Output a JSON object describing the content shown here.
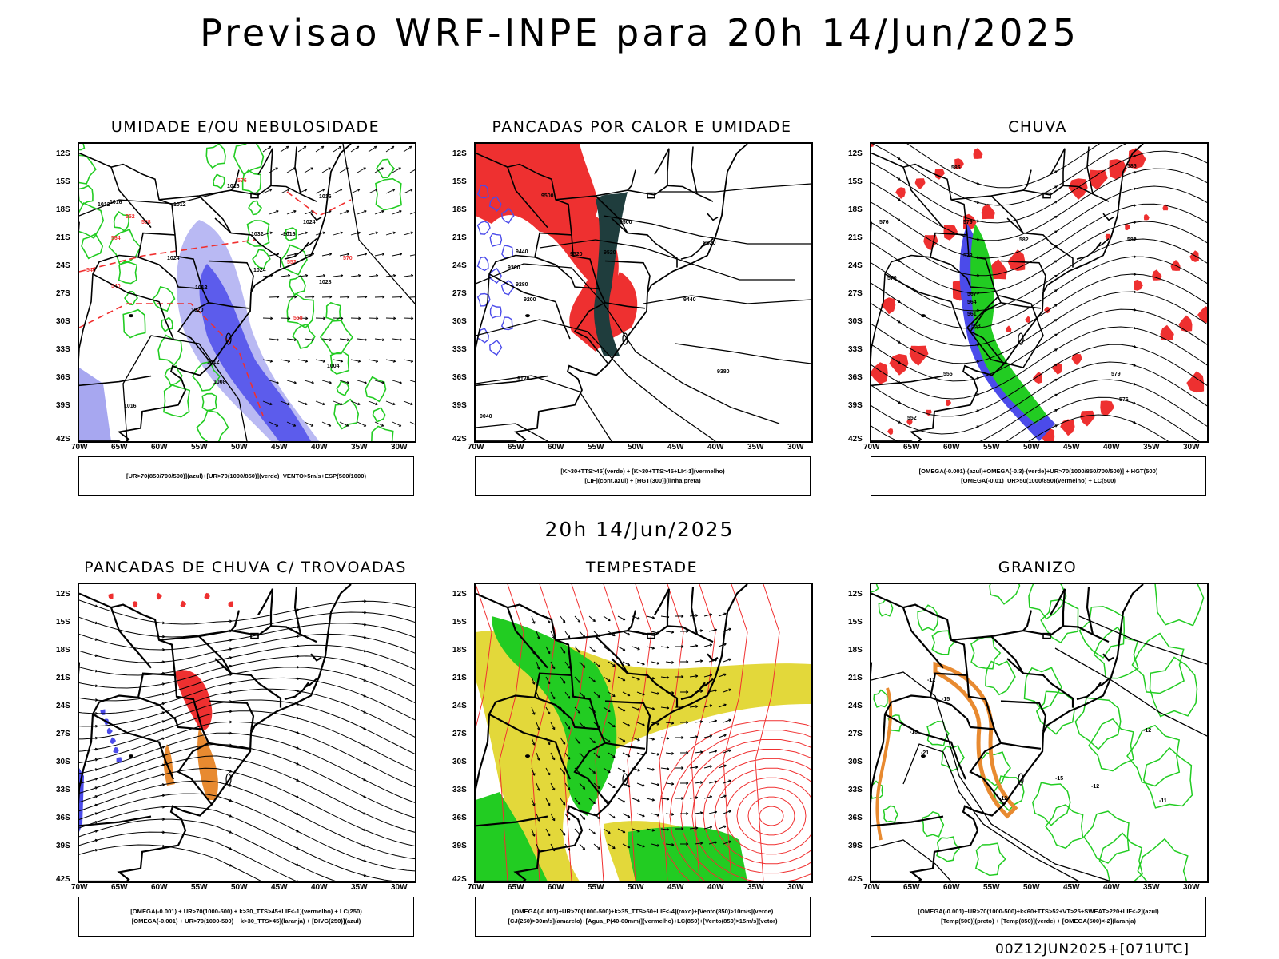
{
  "title": "Previsao WRF-INPE  para 20h 14/Jun/2025",
  "mid_date": "20h 14/Jun/2025",
  "run_stamp": "00Z12JUN2025+[071UTC]",
  "axes": {
    "lat": [
      "12S",
      "15S",
      "18S",
      "21S",
      "24S",
      "27S",
      "30S",
      "33S",
      "36S",
      "39S",
      "42S"
    ],
    "lon": [
      "70W",
      "65W",
      "60W",
      "55W",
      "50W",
      "45W",
      "40W",
      "35W",
      "30W"
    ]
  },
  "colors": {
    "blue": "#4b4bea",
    "light_blue": "#a7a7f0",
    "green": "#22cc22",
    "red": "#ee3030",
    "orange": "#e88a30",
    "yellow": "#e3d83a",
    "dark_teal": "#1f3d3d",
    "line_red": "#f03030"
  },
  "panels": [
    {
      "id": "umidade",
      "title": "UMIDADE E/OU NEBULOSIDADE",
      "legend": [
        "[UR>70(850/700/500)](azul)+[UR>70(1000/850)](verde)+VENTO>5m/s+ESP(500/1000)"
      ],
      "labels": [
        "1016",
        "1012",
        "1016",
        "1016",
        "1024",
        "1024",
        "1012",
        "1024",
        "1028",
        "1020",
        "1012",
        "1008",
        "1004",
        "1016",
        "1012",
        "1032",
        "1016",
        "570",
        "576",
        "564",
        "558",
        "552",
        "546",
        "540",
        "552",
        "558"
      ]
    },
    {
      "id": "pancadas-calor",
      "title": "PANCADAS POR CALOR E UMIDADE",
      "legend": [
        "[K>30+TTS>45](verde) + [K>30+TTS>45+LI<-1](vermelho)",
        "[LIF](cont.azul) + [HGT(300)](linha preta)"
      ],
      "labels": [
        "9520",
        "9500",
        "9440",
        "9360",
        "9280",
        "9200",
        "9120",
        "9040",
        "9520",
        "9500",
        "9520",
        "9440",
        "9380"
      ]
    },
    {
      "id": "chuva",
      "title": "CHUVA",
      "legend": [
        "[OMEGA(-0.001)-(azul)+OMEGA(-0.3)-(verde)+UR>70(1000/850/700/500)] + HGT(500)",
        "[OMEGA(-0.01)_UR>50(1000/850)(vermelho) + LC(500)"
      ],
      "labels": [
        "585",
        "582",
        "579",
        "576",
        "573",
        "570",
        "567",
        "564",
        "561",
        "558",
        "555",
        "552",
        "585",
        "582",
        "579",
        "576"
      ]
    },
    {
      "id": "trovoadas",
      "title": "PANCADAS DE CHUVA C/ TROVOADAS",
      "legend": [
        "[OMEGA(-0.001) + UR>70(1000-500) + k>30_TTS>45+LIF<-1](vermelho) + LC(250)",
        "[OMEGA(-0.001) + UR>70(1000-500) + k>30_TTS>45](laranja) + [DIVG(250)](azul)"
      ],
      "labels": []
    },
    {
      "id": "tempestade",
      "title": "TEMPESTADE",
      "legend": [
        "[OMEGA(-0.001)+UR>70(1000-500)+k>35_TTS>50+LIF<-4](roxo)+[Vento(850)>10m/s](verde)",
        "[CJ(250)>30m/s](amarelo)+[Agua_P(40-60mm)](vermelho)+LC(850)+[Vento(850)>15m/s](vetor)"
      ],
      "labels": []
    },
    {
      "id": "granizo",
      "title": "GRANIZO",
      "legend": [
        "[OMEGA(-0.001)+UR>70(1000-500)+k<60+TTS>52+VT>25+SWEAT>220+LIF<-2](azul)",
        "[Temp(500)](preto) + [Temp(850)](verde) + [OMEGA(500)<-2](laranja)"
      ],
      "labels": [
        "-12",
        "-15",
        "-18",
        "-21",
        "-12",
        "-15",
        "-12",
        "-11",
        "-12"
      ]
    }
  ]
}
